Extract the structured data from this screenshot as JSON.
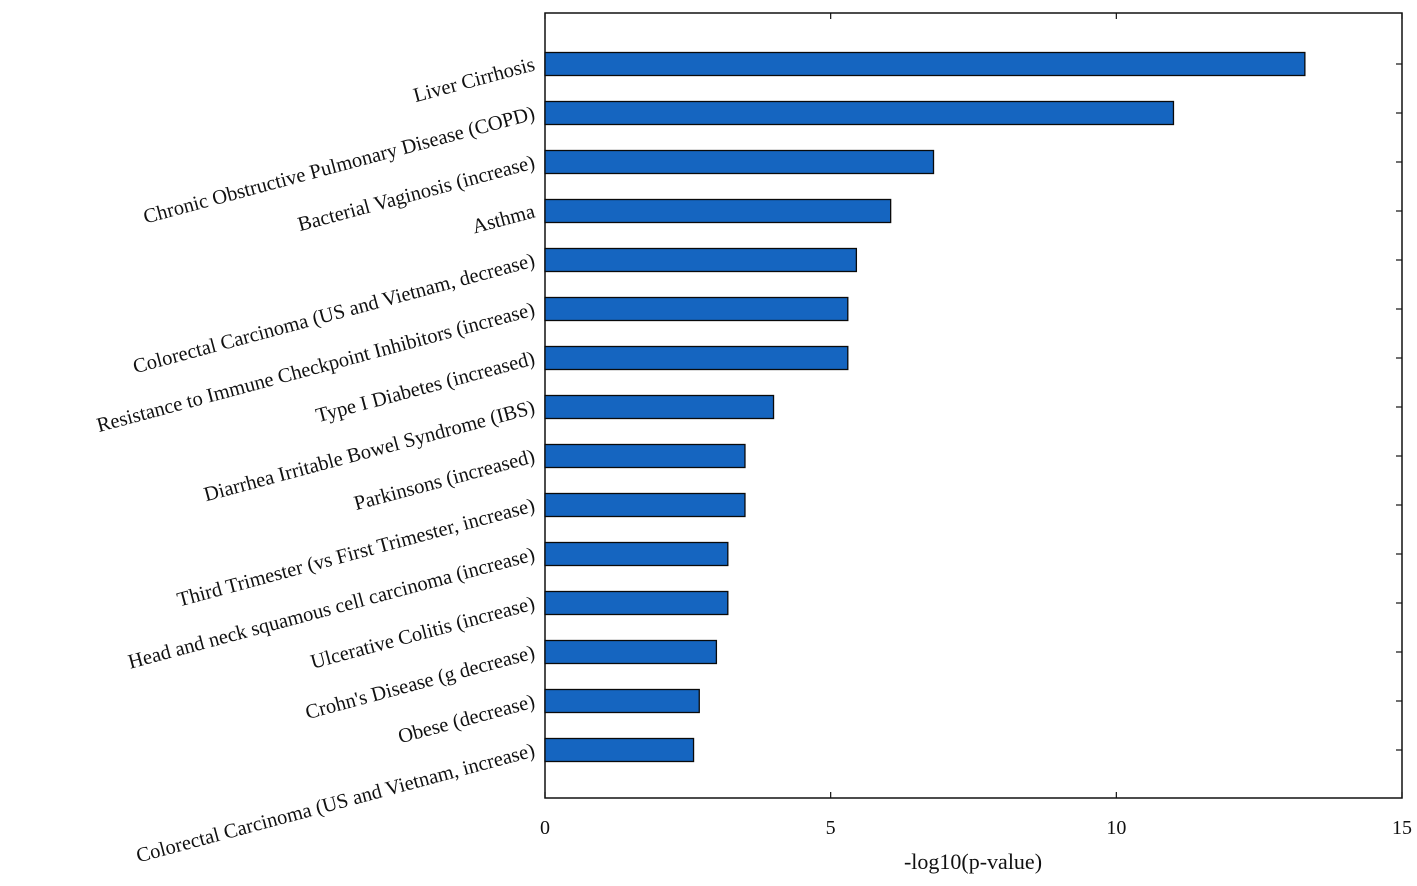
{
  "chart_data": {
    "type": "bar",
    "orientation": "horizontal",
    "categories": [
      "Liver Cirrhosis",
      "Chronic Obstructive Pulmonary Disease (COPD)",
      "Bacterial Vaginosis (increase)",
      "Asthma",
      "Colorectal Carcinoma (US and Vietnam, decrease)",
      "Resistance to Immune Checkpoint Inhibitors (increase)",
      "Type I Diabetes (increased)",
      "Diarrhea Irritable Bowel Syndrome (IBS)",
      "Parkinsons (increased)",
      "Third Trimester (vs First Trimester, increase)",
      "Head and neck squamous cell carcinoma (increase)",
      "Ulcerative Colitis (increase)",
      "Crohn's Disease (g decrease)",
      "Obese (decrease)",
      "Colorectal Carcinoma (US and Vietnam, increase)"
    ],
    "values": [
      13.3,
      11.0,
      6.8,
      6.05,
      5.45,
      5.3,
      5.3,
      4.0,
      3.5,
      3.5,
      3.2,
      3.2,
      3.0,
      2.7,
      2.6
    ],
    "title": "",
    "xlabel": "-log10(p-value)",
    "ylabel": "",
    "xlim": [
      0,
      15
    ],
    "xticks": [
      0,
      5,
      10,
      15
    ],
    "xtick_labels": [
      "0",
      "5",
      "10",
      "15"
    ],
    "bar_color": "#1565c0",
    "bar_edge_color": "#0a0a0a",
    "grid": false,
    "legend": "none"
  }
}
